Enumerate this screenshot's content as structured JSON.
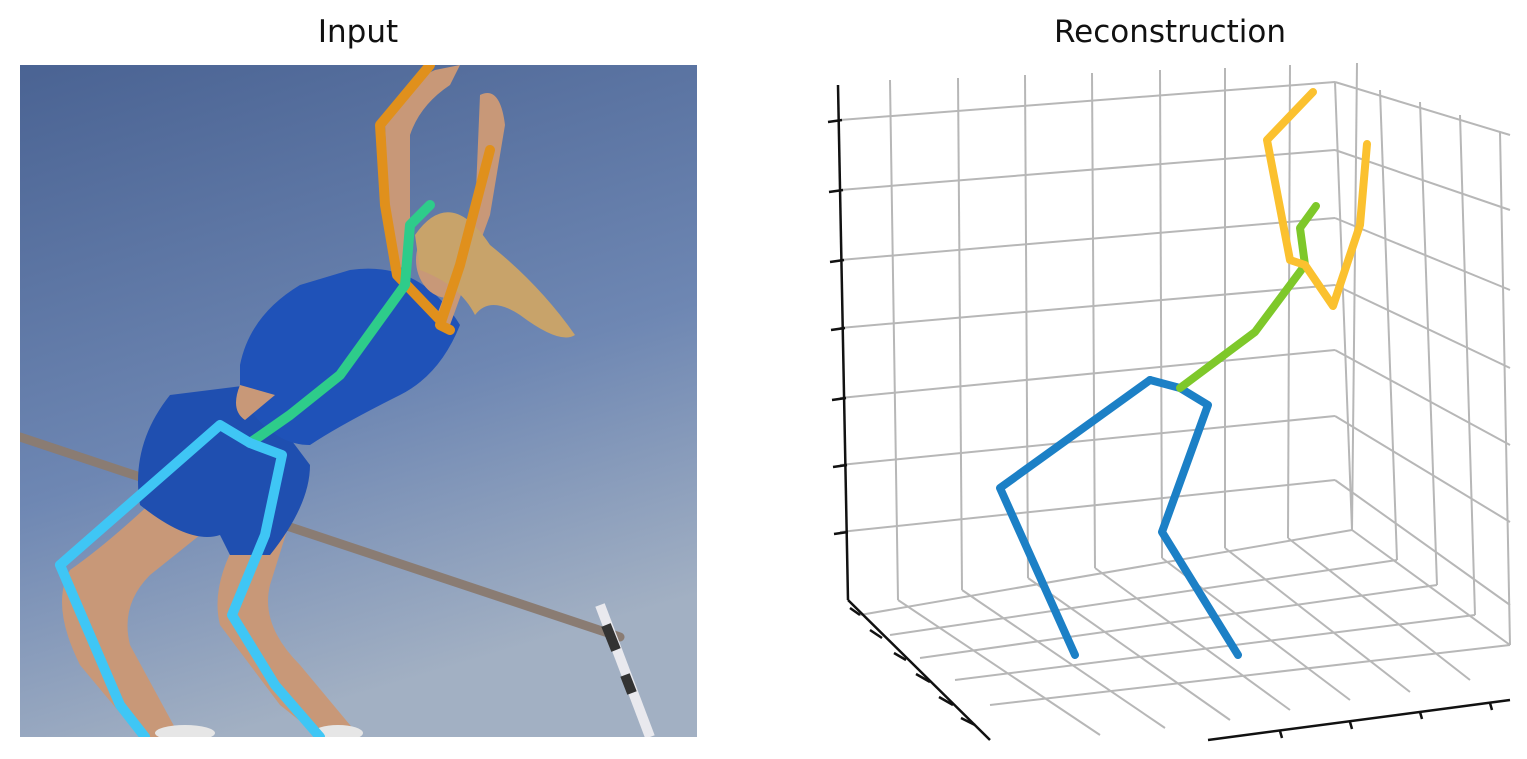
{
  "panels": {
    "input": {
      "title": "Input"
    },
    "reconstruction": {
      "title": "Reconstruction"
    }
  },
  "colors": {
    "photo_sky_top": "#4a6393",
    "photo_sky_bottom": "#a2b0c3",
    "uniform": "#1f4fb0",
    "skin": "#c99a7a",
    "hair": "#c8a36a",
    "pose2d_arms": "#e0901c",
    "pose2d_spine": "#2ecc8a",
    "pose2d_legs": "#3fc6f5",
    "pose3d_arms": "#fbc12f",
    "pose3d_spine": "#7ec82a",
    "pose3d_legs": "#1c80c6",
    "grid": "#b7b7b7",
    "axis": "#111111"
  },
  "icons": {
    "input_photo": "high-jump-athlete-photo"
  }
}
